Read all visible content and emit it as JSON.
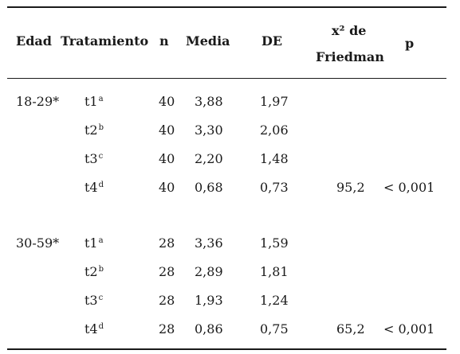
{
  "table": {
    "headers": {
      "edad": "Edad",
      "tratamiento": "Tratamiento",
      "n": "n",
      "media": "Media",
      "de": "DE",
      "friedman_line1": "x² de",
      "friedman_line2": "Friedman",
      "p": "p"
    },
    "groups": [
      {
        "edad": "18-29*",
        "rows": [
          {
            "trat": "t1",
            "sup": "a",
            "n": "40",
            "media": "3,88",
            "de": "1,97",
            "friedman": "",
            "p": ""
          },
          {
            "trat": "t2",
            "sup": "b",
            "n": "40",
            "media": "3,30",
            "de": "2,06",
            "friedman": "",
            "p": ""
          },
          {
            "trat": "t3",
            "sup": "c",
            "n": "40",
            "media": "2,20",
            "de": "1,48",
            "friedman": "",
            "p": ""
          },
          {
            "trat": "t4",
            "sup": "d",
            "n": "40",
            "media": "0,68",
            "de": "0,73",
            "friedman": "95,2",
            "p": "< 0,001"
          }
        ]
      },
      {
        "edad": "30-59*",
        "rows": [
          {
            "trat": "t1",
            "sup": "a",
            "n": "28",
            "media": "3,36",
            "de": "1,59",
            "friedman": "",
            "p": ""
          },
          {
            "trat": "t2",
            "sup": "b",
            "n": "28",
            "media": "2,89",
            "de": "1,81",
            "friedman": "",
            "p": ""
          },
          {
            "trat": "t3",
            "sup": "c",
            "n": "28",
            "media": "1,93",
            "de": "1,24",
            "friedman": "",
            "p": ""
          },
          {
            "trat": "t4",
            "sup": "d",
            "n": "28",
            "media": "0,86",
            "de": "0,75",
            "friedman": "65,2",
            "p": "< 0,001"
          }
        ]
      }
    ]
  }
}
